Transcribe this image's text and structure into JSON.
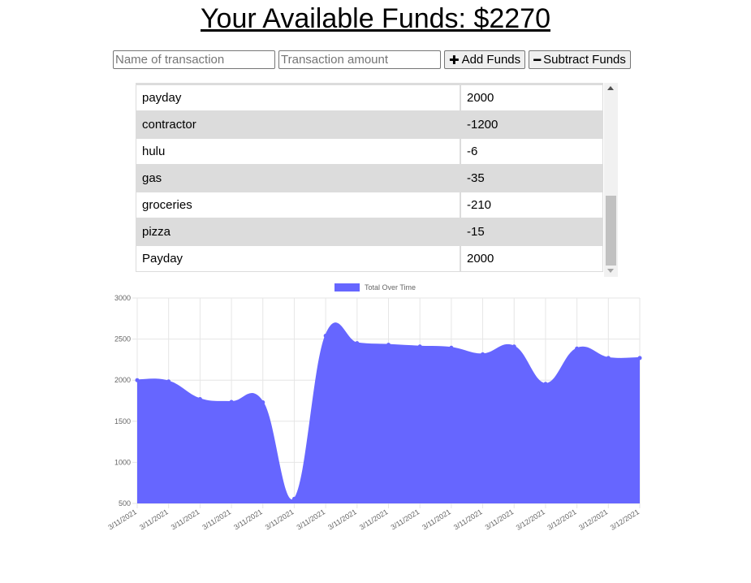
{
  "header": {
    "title": "Your Available Funds: $2270"
  },
  "form": {
    "name_placeholder": "Name of transaction",
    "amount_placeholder": "Transaction amount",
    "add_icon": "plus-icon",
    "add_label": "Add Funds",
    "subtract_icon": "minus-icon",
    "subtract_label": "Subtract Funds"
  },
  "transactions": [
    {
      "name": "payday",
      "amount": "2000"
    },
    {
      "name": "contractor",
      "amount": "-1200"
    },
    {
      "name": "hulu",
      "amount": "-6"
    },
    {
      "name": "gas",
      "amount": "-35"
    },
    {
      "name": "groceries",
      "amount": "-210"
    },
    {
      "name": "pizza",
      "amount": "-15"
    },
    {
      "name": "Payday",
      "amount": "2000"
    }
  ],
  "colors": {
    "fill": "#6666ff",
    "row_shade": "#dcdcdc"
  },
  "chart_data": {
    "type": "area",
    "title": "",
    "legend": [
      "Total Over Time"
    ],
    "legend_position": "top",
    "xlabel": "",
    "ylabel": "",
    "ylim": [
      500,
      3000
    ],
    "yticks": [
      500,
      1000,
      1500,
      2000,
      2500,
      3000
    ],
    "categories": [
      "3/11/2021",
      "3/11/2021",
      "3/11/2021",
      "3/11/2021",
      "3/11/2021",
      "3/11/2021",
      "3/11/2021",
      "3/11/2021",
      "3/11/2021",
      "3/11/2021",
      "3/11/2021",
      "3/11/2021",
      "3/11/2021",
      "3/12/2021",
      "3/12/2021",
      "3/12/2021",
      "3/12/2021"
    ],
    "series": [
      {
        "name": "Total Over Time",
        "values": [
          2000,
          1985,
          1770,
          1735,
          1730,
          555,
          2540,
          2450,
          2430,
          2410,
          2395,
          2315,
          2410,
          1955,
          2385,
          2270,
          2270
        ]
      }
    ],
    "grid": true
  }
}
